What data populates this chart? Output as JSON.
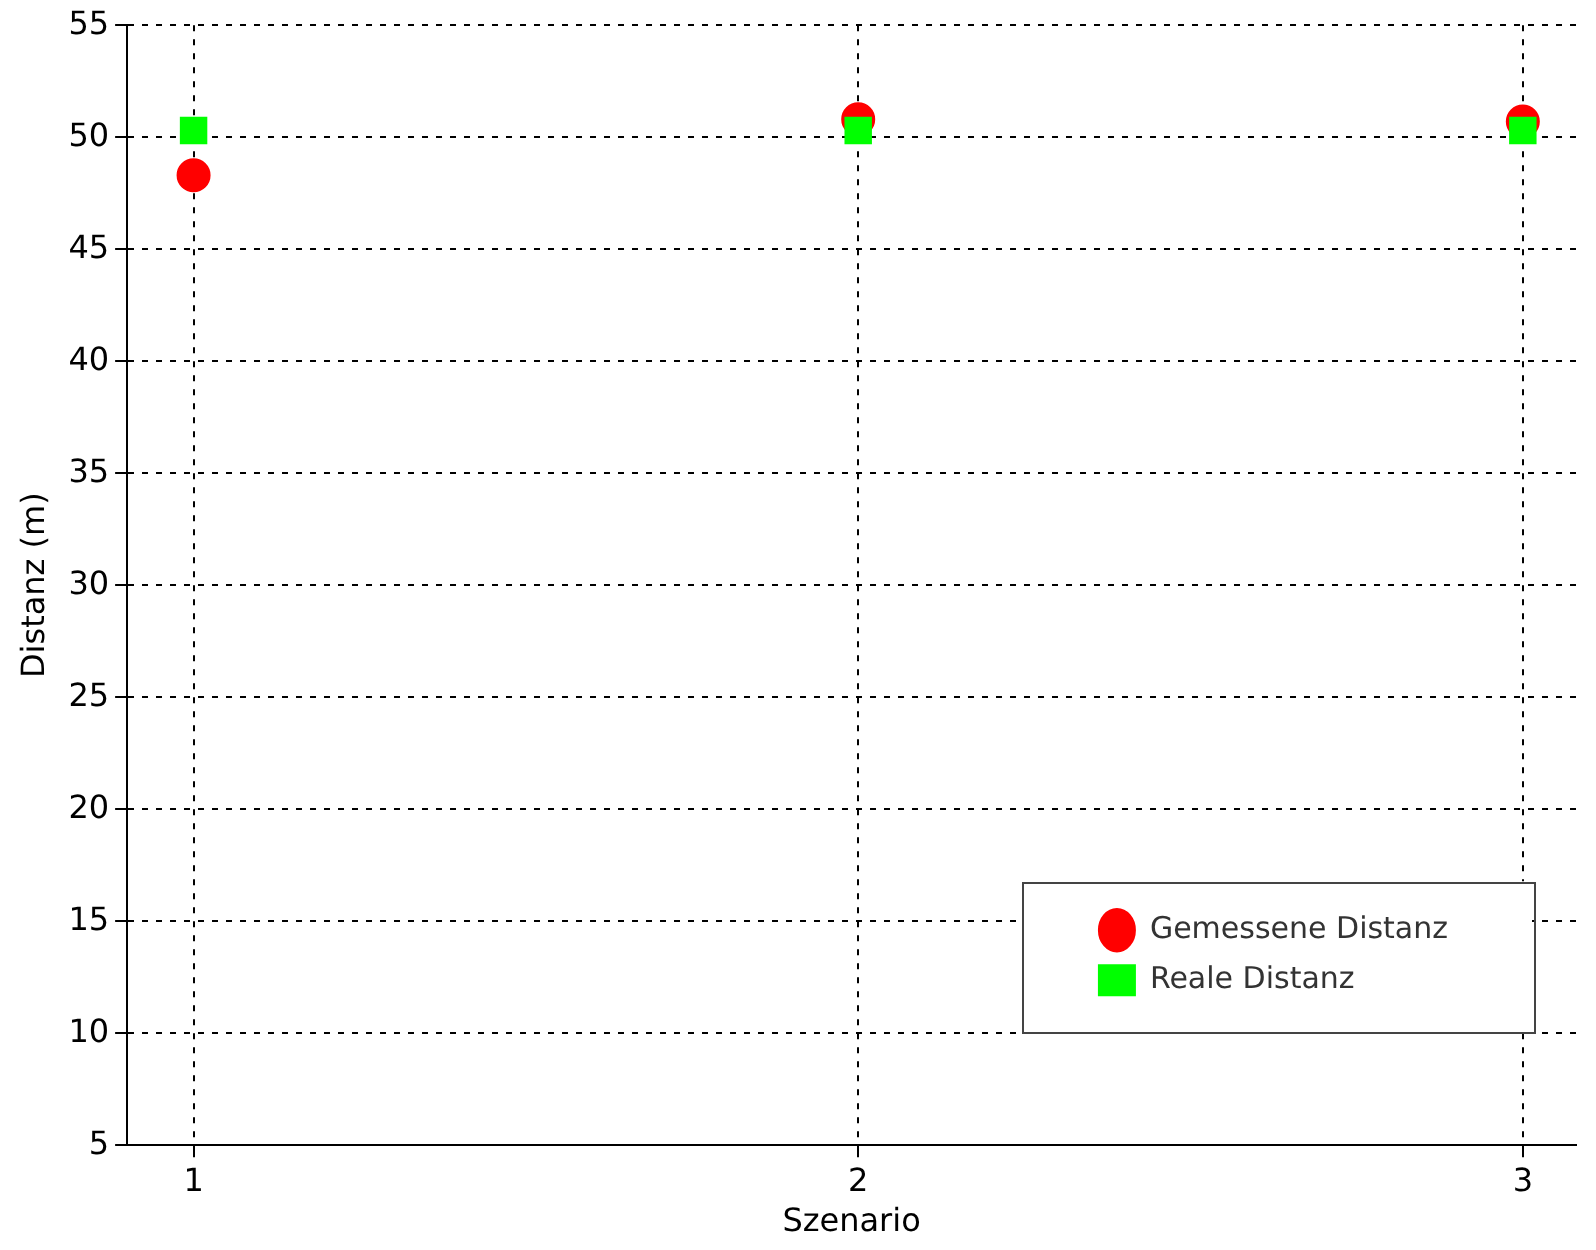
{
  "chart_data": {
    "type": "scatter",
    "xlabel": "Szenario",
    "ylabel": "Distanz (m)",
    "x": [
      1,
      2,
      3
    ],
    "series": [
      {
        "name": "Gemessene Distanz",
        "color": "#ff0000",
        "marker": "circle",
        "values": [
          48.3,
          50.8,
          50.7
        ]
      },
      {
        "name": "Reale Distanz",
        "color": "#00ff00",
        "marker": "square",
        "values": [
          50.3,
          50.3,
          50.3
        ]
      }
    ],
    "xlim": [
      0.9,
      3.08
    ],
    "xticks": [
      1,
      2,
      3
    ],
    "ylim": [
      5,
      55
    ],
    "yticks": [
      5,
      10,
      15,
      20,
      25,
      30,
      35,
      40,
      45,
      50,
      55
    ],
    "grid": true,
    "legend": "bottom right"
  }
}
